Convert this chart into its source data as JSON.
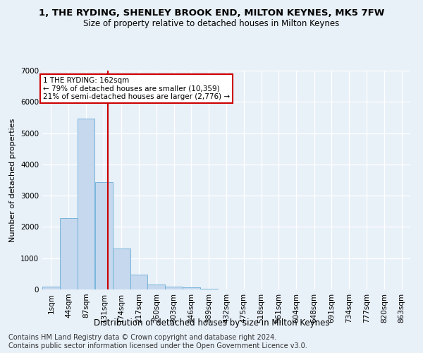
{
  "title": "1, THE RYDING, SHENLEY BROOK END, MILTON KEYNES, MK5 7FW",
  "subtitle": "Size of property relative to detached houses in Milton Keynes",
  "xlabel": "Distribution of detached houses by size in Milton Keynes",
  "ylabel": "Number of detached properties",
  "annotation_line1": "1 THE RYDING: 162sqm",
  "annotation_line2": "← 79% of detached houses are smaller (10,359)",
  "annotation_line3": "21% of semi-detached houses are larger (2,776) →",
  "bar_color": "#c5d8ee",
  "bar_edge_color": "#6aaed6",
  "marker_color": "#cc0000",
  "marker_value": 162,
  "categories": [
    "1sqm",
    "44sqm",
    "87sqm",
    "131sqm",
    "174sqm",
    "217sqm",
    "260sqm",
    "303sqm",
    "346sqm",
    "389sqm",
    "432sqm",
    "475sqm",
    "518sqm",
    "561sqm",
    "604sqm",
    "648sqm",
    "691sqm",
    "734sqm",
    "777sqm",
    "820sqm",
    "863sqm"
  ],
  "bin_edges": [
    1,
    44,
    87,
    131,
    174,
    217,
    260,
    303,
    346,
    389,
    432,
    475,
    518,
    561,
    604,
    648,
    691,
    734,
    777,
    820,
    863
  ],
  "values": [
    80,
    2270,
    5460,
    3440,
    1310,
    470,
    155,
    90,
    65,
    30,
    0,
    0,
    0,
    0,
    0,
    0,
    0,
    0,
    0,
    0
  ],
  "ylim": [
    0,
    7000
  ],
  "yticks": [
    0,
    1000,
    2000,
    3000,
    4000,
    5000,
    6000,
    7000
  ],
  "footer_line1": "Contains HM Land Registry data © Crown copyright and database right 2024.",
  "footer_line2": "Contains public sector information licensed under the Open Government Licence v3.0.",
  "background_color": "#e8f0f8",
  "plot_background": "#e8f0f8",
  "grid_color": "#ffffff",
  "title_fontsize": 9.5,
  "subtitle_fontsize": 8.5,
  "xlabel_fontsize": 8.5,
  "ylabel_fontsize": 8,
  "tick_fontsize": 7.5,
  "footer_fontsize": 7
}
